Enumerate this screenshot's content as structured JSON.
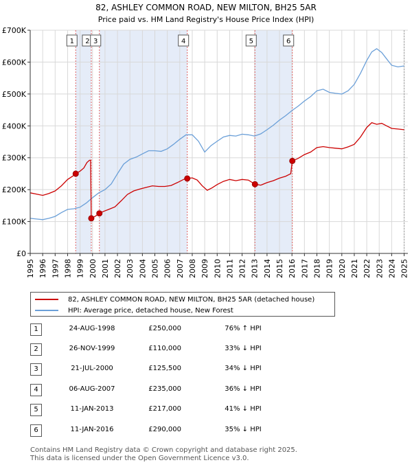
{
  "chart_data": {
    "type": "line",
    "title": "82, ASHLEY COMMON ROAD, NEW MILTON, BH25 5AR",
    "subtitle": "Price paid vs. HM Land Registry's House Price Index (HPI)",
    "xlabel": "",
    "ylabel": "",
    "xlim": [
      1995,
      2025.3
    ],
    "ylim": [
      0,
      700000
    ],
    "x_ticks": [
      "1995",
      "1996",
      "1997",
      "1998",
      "1999",
      "2000",
      "2001",
      "2002",
      "2003",
      "2004",
      "2005",
      "2006",
      "2007",
      "2008",
      "2009",
      "2010",
      "2011",
      "2012",
      "2013",
      "2014",
      "2015",
      "2016",
      "2017",
      "2018",
      "2019",
      "2020",
      "2021",
      "2022",
      "2023",
      "2024",
      "2025"
    ],
    "y_ticks": [
      {
        "value": 0,
        "label": "£0"
      },
      {
        "value": 100000,
        "label": "£100K"
      },
      {
        "value": 200000,
        "label": "£200K"
      },
      {
        "value": 300000,
        "label": "£300K"
      },
      {
        "value": 400000,
        "label": "£400K"
      },
      {
        "value": 500000,
        "label": "£500K"
      },
      {
        "value": 600000,
        "label": "£600K"
      },
      {
        "value": 700000,
        "label": "£700K"
      }
    ],
    "grid": true,
    "legend_position": "below",
    "series": [
      {
        "name": "82, ASHLEY COMMON ROAD, NEW MILTON, BH25 5AR (detached house)",
        "color": "#cc0000",
        "points": [
          [
            1995.0,
            190000
          ],
          [
            1995.5,
            186000
          ],
          [
            1996.0,
            182000
          ],
          [
            1996.5,
            188000
          ],
          [
            1997.0,
            196000
          ],
          [
            1997.5,
            212000
          ],
          [
            1998.0,
            232000
          ],
          [
            1998.4,
            242000
          ],
          [
            1998.65,
            250000
          ],
          [
            1999.0,
            258000
          ],
          [
            1999.3,
            268000
          ],
          [
            1999.55,
            285000
          ],
          [
            1999.75,
            292000
          ],
          [
            1999.85,
            292000
          ],
          [
            1999.9,
            110000
          ],
          [
            2000.2,
            116000
          ],
          [
            2000.55,
            125500
          ],
          [
            2000.9,
            132000
          ],
          [
            2001.3,
            138000
          ],
          [
            2001.8,
            146000
          ],
          [
            2002.3,
            165000
          ],
          [
            2002.8,
            185000
          ],
          [
            2003.3,
            196000
          ],
          [
            2003.8,
            202000
          ],
          [
            2004.3,
            207000
          ],
          [
            2004.8,
            212000
          ],
          [
            2005.3,
            210000
          ],
          [
            2005.8,
            210000
          ],
          [
            2006.3,
            213000
          ],
          [
            2006.8,
            222000
          ],
          [
            2007.3,
            232000
          ],
          [
            2007.6,
            235000
          ],
          [
            2008.0,
            237000
          ],
          [
            2008.4,
            230000
          ],
          [
            2008.8,
            212000
          ],
          [
            2009.2,
            198000
          ],
          [
            2009.6,
            206000
          ],
          [
            2010.0,
            216000
          ],
          [
            2010.5,
            226000
          ],
          [
            2011.0,
            232000
          ],
          [
            2011.5,
            228000
          ],
          [
            2012.0,
            232000
          ],
          [
            2012.5,
            230000
          ],
          [
            2013.03,
            217000
          ],
          [
            2013.5,
            214000
          ],
          [
            2014.0,
            222000
          ],
          [
            2014.5,
            228000
          ],
          [
            2015.0,
            236000
          ],
          [
            2015.5,
            242000
          ],
          [
            2015.9,
            250000
          ],
          [
            2016.03,
            290000
          ],
          [
            2016.5,
            298000
          ],
          [
            2017.0,
            310000
          ],
          [
            2017.5,
            318000
          ],
          [
            2018.0,
            332000
          ],
          [
            2018.5,
            335000
          ],
          [
            2019.0,
            332000
          ],
          [
            2019.5,
            330000
          ],
          [
            2020.0,
            328000
          ],
          [
            2020.5,
            334000
          ],
          [
            2021.0,
            342000
          ],
          [
            2021.5,
            365000
          ],
          [
            2022.0,
            395000
          ],
          [
            2022.4,
            410000
          ],
          [
            2022.8,
            405000
          ],
          [
            2023.2,
            408000
          ],
          [
            2023.6,
            400000
          ],
          [
            2024.0,
            392000
          ],
          [
            2024.5,
            390000
          ],
          [
            2025.0,
            388000
          ]
        ]
      },
      {
        "name": "HPI: Average price, detached house, New Forest",
        "color": "#6a9fd8",
        "points": [
          [
            1995.0,
            110000
          ],
          [
            1995.5,
            108000
          ],
          [
            1996.0,
            106000
          ],
          [
            1996.5,
            110000
          ],
          [
            1997.0,
            116000
          ],
          [
            1997.5,
            128000
          ],
          [
            1998.0,
            138000
          ],
          [
            1998.5,
            140000
          ],
          [
            1999.0,
            145000
          ],
          [
            1999.5,
            158000
          ],
          [
            2000.0,
            175000
          ],
          [
            2000.5,
            190000
          ],
          [
            2001.0,
            200000
          ],
          [
            2001.5,
            218000
          ],
          [
            2002.0,
            250000
          ],
          [
            2002.5,
            280000
          ],
          [
            2003.0,
            295000
          ],
          [
            2003.5,
            302000
          ],
          [
            2004.0,
            312000
          ],
          [
            2004.5,
            322000
          ],
          [
            2005.0,
            322000
          ],
          [
            2005.5,
            320000
          ],
          [
            2006.0,
            328000
          ],
          [
            2006.5,
            342000
          ],
          [
            2007.0,
            358000
          ],
          [
            2007.5,
            372000
          ],
          [
            2008.0,
            372000
          ],
          [
            2008.5,
            352000
          ],
          [
            2009.0,
            318000
          ],
          [
            2009.5,
            338000
          ],
          [
            2010.0,
            352000
          ],
          [
            2010.5,
            365000
          ],
          [
            2011.0,
            370000
          ],
          [
            2011.5,
            368000
          ],
          [
            2012.0,
            374000
          ],
          [
            2012.5,
            372000
          ],
          [
            2013.0,
            368000
          ],
          [
            2013.5,
            375000
          ],
          [
            2014.0,
            388000
          ],
          [
            2014.5,
            402000
          ],
          [
            2015.0,
            418000
          ],
          [
            2015.5,
            432000
          ],
          [
            2016.0,
            448000
          ],
          [
            2016.5,
            462000
          ],
          [
            2017.0,
            478000
          ],
          [
            2017.5,
            492000
          ],
          [
            2018.0,
            510000
          ],
          [
            2018.5,
            515000
          ],
          [
            2019.0,
            505000
          ],
          [
            2019.5,
            502000
          ],
          [
            2020.0,
            500000
          ],
          [
            2020.5,
            510000
          ],
          [
            2021.0,
            530000
          ],
          [
            2021.5,
            565000
          ],
          [
            2022.0,
            605000
          ],
          [
            2022.4,
            632000
          ],
          [
            2022.8,
            642000
          ],
          [
            2023.2,
            630000
          ],
          [
            2023.6,
            610000
          ],
          [
            2024.0,
            590000
          ],
          [
            2024.5,
            585000
          ],
          [
            2025.0,
            588000
          ]
        ]
      }
    ],
    "sales": [
      {
        "num": "1",
        "x": 1998.65,
        "price": 250000
      },
      {
        "num": "2",
        "x": 1999.9,
        "price": 110000
      },
      {
        "num": "3",
        "x": 2000.55,
        "price": 125500
      },
      {
        "num": "4",
        "x": 2007.6,
        "price": 235000
      },
      {
        "num": "5",
        "x": 2013.03,
        "price": 217000
      },
      {
        "num": "6",
        "x": 2016.03,
        "price": 290000
      }
    ],
    "shaded_ranges": [
      [
        1998.65,
        1999.9
      ],
      [
        2000.55,
        2007.6
      ],
      [
        2013.03,
        2016.03
      ]
    ]
  },
  "legend": {
    "property_label": "82, ASHLEY COMMON ROAD, NEW MILTON, BH25 5AR (detached house)",
    "hpi_label": "HPI: Average price, detached house, New Forest",
    "property_color": "#cc0000",
    "hpi_color": "#6a9fd8"
  },
  "sales_table": [
    {
      "num": "1",
      "date": "24-AUG-1998",
      "price": "£250,000",
      "hpi": "76% ↑ HPI"
    },
    {
      "num": "2",
      "date": "26-NOV-1999",
      "price": "£110,000",
      "hpi": "33% ↓ HPI"
    },
    {
      "num": "3",
      "date": "21-JUL-2000",
      "price": "£125,500",
      "hpi": "34% ↓ HPI"
    },
    {
      "num": "4",
      "date": "06-AUG-2007",
      "price": "£235,000",
      "hpi": "36% ↓ HPI"
    },
    {
      "num": "5",
      "date": "11-JAN-2013",
      "price": "£217,000",
      "hpi": "41% ↓ HPI"
    },
    {
      "num": "6",
      "date": "11-JAN-2016",
      "price": "£290,000",
      "hpi": "35% ↓ HPI"
    }
  ],
  "footer": {
    "line1": "Contains HM Land Registry data © Crown copyright and database right 2025.",
    "line2": "This data is licensed under the Open Government Licence v3.0."
  }
}
